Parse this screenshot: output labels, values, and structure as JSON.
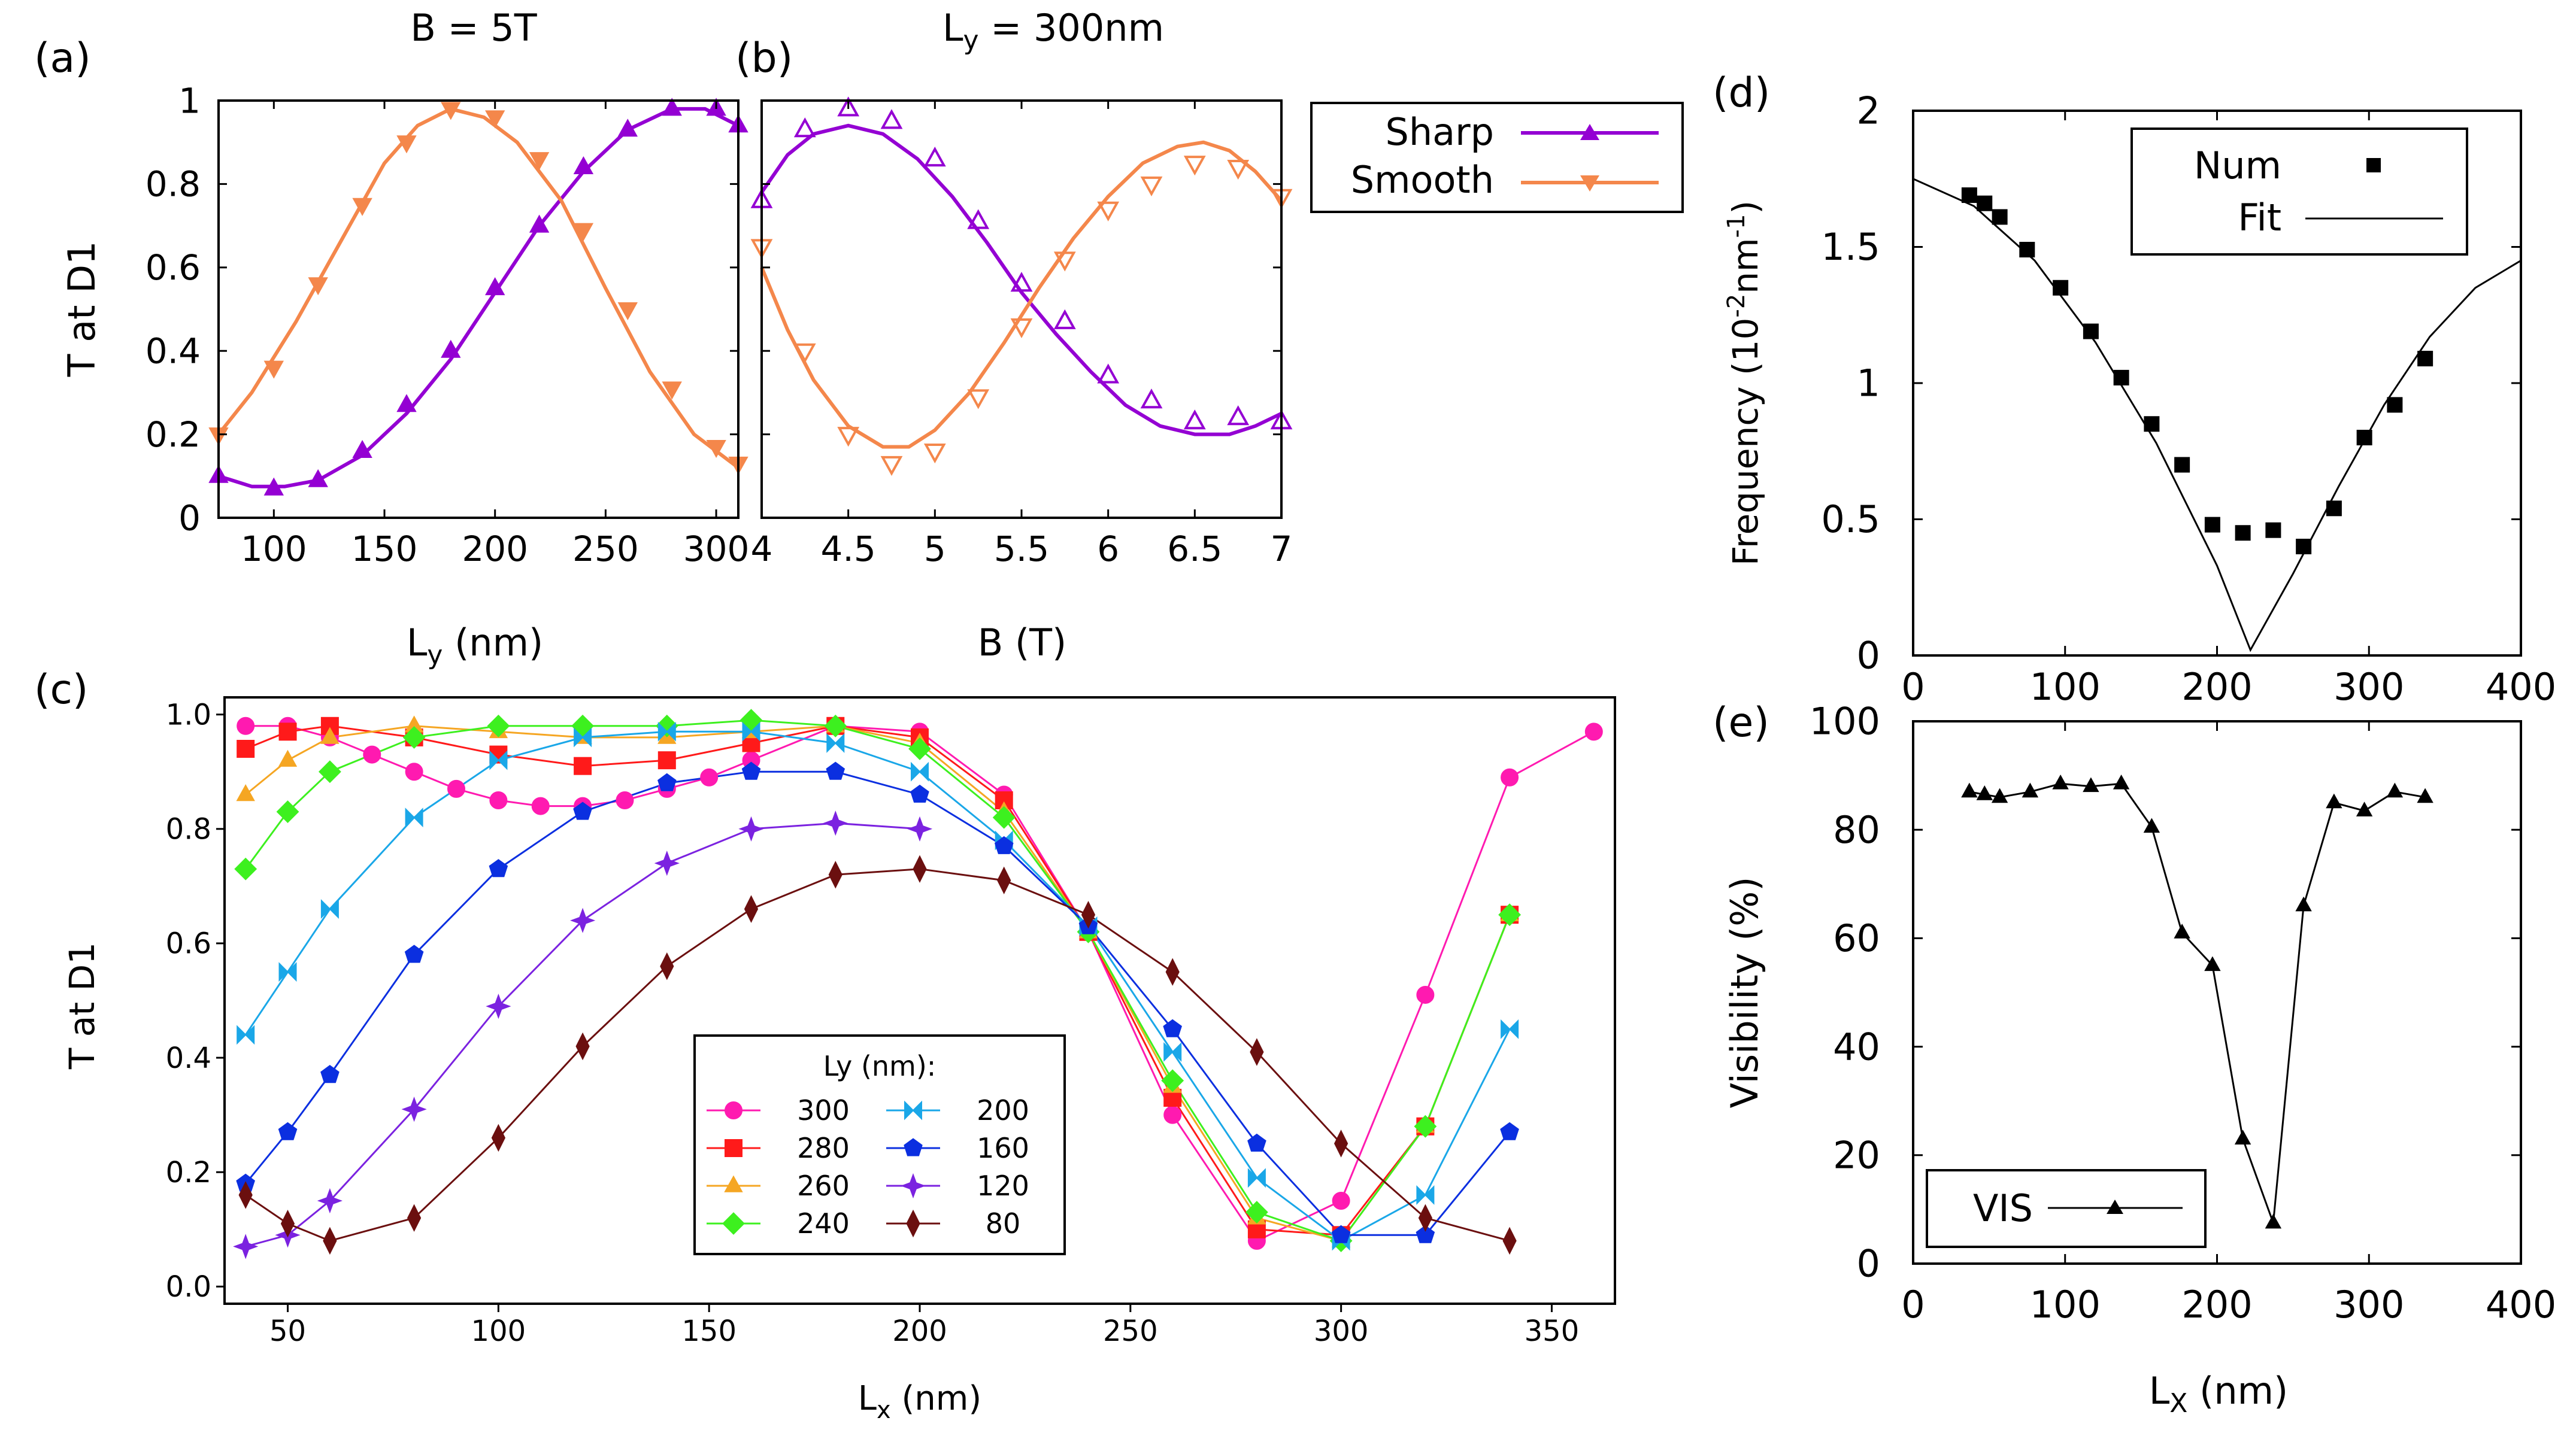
{
  "figure": {
    "panels": {
      "a": {
        "label": "(a)"
      },
      "b": {
        "label": "(b)"
      },
      "c": {
        "label": "(c)"
      },
      "d": {
        "label": "(d)"
      },
      "e": {
        "label": "(e)"
      }
    },
    "shared_legend_ab": {
      "entries": [
        "Sharp",
        "Smooth"
      ]
    },
    "colors": {
      "sharp": "#9400d3",
      "smooth": "#f4874b"
    }
  },
  "chart_data": [
    {
      "id": "a",
      "type": "line",
      "title": "B = 5T",
      "xlabel": "L",
      "xlabel_sub": "y",
      "xlabel_unit": " (nm)",
      "ylabel": "T at D1",
      "xlim": [
        75,
        310
      ],
      "ylim": [
        0,
        1
      ],
      "xticks": [
        100,
        150,
        200,
        250,
        300
      ],
      "ytick_labels": [
        "0",
        "0.2",
        "0.4",
        "0.6",
        "0.8",
        "1"
      ],
      "series": [
        {
          "name": "Sharp",
          "marker": "tri-up",
          "x": [
            75,
            100,
            120,
            140,
            160,
            180,
            200,
            220,
            240,
            260,
            280,
            300,
            310
          ],
          "y": [
            0.1,
            0.07,
            0.09,
            0.16,
            0.27,
            0.4,
            0.55,
            0.7,
            0.84,
            0.93,
            0.98,
            0.98,
            0.94
          ],
          "fit_x": [
            75,
            90,
            105,
            120,
            140,
            160,
            180,
            200,
            220,
            240,
            260,
            280,
            295,
            310
          ],
          "fit_y": [
            0.1,
            0.075,
            0.075,
            0.09,
            0.15,
            0.25,
            0.38,
            0.54,
            0.7,
            0.83,
            0.93,
            0.98,
            0.98,
            0.94
          ]
        },
        {
          "name": "Smooth",
          "marker": "tri-down",
          "x": [
            75,
            100,
            120,
            140,
            160,
            180,
            200,
            220,
            240,
            260,
            280,
            300,
            310
          ],
          "y": [
            0.2,
            0.36,
            0.56,
            0.75,
            0.9,
            0.98,
            0.96,
            0.86,
            0.69,
            0.5,
            0.31,
            0.17,
            0.13
          ],
          "fit_x": [
            75,
            90,
            110,
            130,
            150,
            165,
            180,
            195,
            210,
            230,
            250,
            270,
            290,
            310
          ],
          "fit_y": [
            0.2,
            0.3,
            0.47,
            0.66,
            0.85,
            0.94,
            0.98,
            0.96,
            0.9,
            0.76,
            0.55,
            0.35,
            0.2,
            0.12
          ]
        }
      ]
    },
    {
      "id": "b",
      "type": "line",
      "title": "L",
      "title_sub": "y",
      "title_suffix": " = 300nm",
      "xlabel": "B (T)",
      "xlim": [
        4,
        7
      ],
      "ylim": [
        0,
        1
      ],
      "xticks": [
        4,
        4.5,
        5,
        5.5,
        6,
        6.5,
        7
      ],
      "xtick_labels": [
        "4",
        "4.5",
        "5",
        "5.5",
        "6",
        "6.5",
        "7"
      ],
      "series": [
        {
          "name": "Sharp",
          "marker": "tri-up",
          "x": [
            4,
            4.25,
            4.5,
            4.75,
            5,
            5.25,
            5.5,
            5.75,
            6,
            6.25,
            6.5,
            6.75,
            7
          ],
          "y": [
            0.76,
            0.93,
            0.98,
            0.95,
            0.86,
            0.71,
            0.56,
            0.47,
            0.34,
            0.28,
            0.23,
            0.24,
            0.23
          ],
          "fit_x": [
            4,
            4.15,
            4.3,
            4.5,
            4.7,
            4.9,
            5.1,
            5.3,
            5.5,
            5.7,
            5.9,
            6.1,
            6.3,
            6.5,
            6.7,
            6.85,
            7
          ],
          "fit_y": [
            0.78,
            0.87,
            0.92,
            0.94,
            0.92,
            0.86,
            0.77,
            0.66,
            0.54,
            0.44,
            0.35,
            0.27,
            0.22,
            0.2,
            0.2,
            0.22,
            0.25
          ]
        },
        {
          "name": "Smooth",
          "marker": "tri-down",
          "x": [
            4,
            4.25,
            4.5,
            4.75,
            5,
            5.25,
            5.5,
            5.75,
            6,
            6.25,
            6.5,
            6.75,
            7
          ],
          "y": [
            0.65,
            0.4,
            0.2,
            0.13,
            0.16,
            0.29,
            0.46,
            0.62,
            0.74,
            0.8,
            0.85,
            0.84,
            0.77
          ],
          "fit_x": [
            4,
            4.15,
            4.3,
            4.5,
            4.7,
            4.85,
            5,
            5.2,
            5.4,
            5.6,
            5.8,
            6,
            6.2,
            6.4,
            6.55,
            6.7,
            6.85,
            7
          ],
          "fit_y": [
            0.6,
            0.45,
            0.33,
            0.22,
            0.17,
            0.17,
            0.21,
            0.3,
            0.42,
            0.55,
            0.67,
            0.77,
            0.85,
            0.89,
            0.9,
            0.88,
            0.83,
            0.76
          ]
        }
      ]
    },
    {
      "id": "c",
      "type": "line",
      "ylabel": "T at D1",
      "xlabel": "L",
      "xlabel_sub": "x",
      "xlabel_unit": " (nm)",
      "xlim": [
        35,
        365
      ],
      "ylim": [
        -0.03,
        1.03
      ],
      "xticks": [
        50,
        100,
        150,
        200,
        250,
        300,
        350
      ],
      "yticks": [
        0,
        0.2,
        0.4,
        0.6,
        0.8,
        1.0
      ],
      "ytick_labels": [
        "0.0",
        "0.2",
        "0.4",
        "0.6",
        "0.8",
        "1.0"
      ],
      "legend_title": "Ly (nm):",
      "series": [
        {
          "name": "300",
          "color": "#ff1ab0",
          "marker": "circle",
          "x": [
            40,
            50,
            60,
            70,
            80,
            90,
            100,
            110,
            120,
            130,
            140,
            150,
            160,
            180,
            200,
            220,
            240,
            260,
            280,
            300,
            320,
            340,
            360
          ],
          "y": [
            0.98,
            0.98,
            0.96,
            0.93,
            0.9,
            0.87,
            0.85,
            0.84,
            0.84,
            0.85,
            0.87,
            0.89,
            0.92,
            0.98,
            0.97,
            0.86,
            0.62,
            0.3,
            0.08,
            0.15,
            0.51,
            0.89,
            0.97
          ]
        },
        {
          "name": "280",
          "color": "#ff1a1a",
          "marker": "square",
          "x": [
            40,
            50,
            60,
            80,
            100,
            120,
            140,
            160,
            180,
            200,
            220,
            240,
            260,
            280,
            300,
            320,
            340
          ],
          "y": [
            0.94,
            0.97,
            0.98,
            0.96,
            0.93,
            0.91,
            0.92,
            0.95,
            0.98,
            0.96,
            0.85,
            0.62,
            0.33,
            0.1,
            0.09,
            0.28,
            0.65
          ]
        },
        {
          "name": "260",
          "color": "#f5a623",
          "marker": "tri-up",
          "x": [
            40,
            50,
            60,
            80,
            100,
            120,
            140,
            160,
            180,
            200,
            220,
            240,
            260,
            280,
            300,
            320,
            340
          ],
          "y": [
            0.86,
            0.92,
            0.96,
            0.98,
            0.97,
            0.96,
            0.96,
            0.97,
            0.98,
            0.95,
            0.83,
            0.62,
            0.35,
            0.12,
            0.08,
            0.28,
            0.65
          ]
        },
        {
          "name": "240",
          "color": "#3df01f",
          "marker": "diamond",
          "x": [
            40,
            50,
            60,
            80,
            100,
            120,
            140,
            160,
            180,
            200,
            220,
            240,
            260,
            280,
            300,
            320,
            340
          ],
          "y": [
            0.73,
            0.83,
            0.9,
            0.96,
            0.98,
            0.98,
            0.98,
            0.99,
            0.98,
            0.94,
            0.82,
            0.62,
            0.36,
            0.13,
            0.08,
            0.28,
            0.65
          ]
        },
        {
          "name": "200",
          "color": "#1aa7e8",
          "marker": "bowtie",
          "x": [
            40,
            50,
            60,
            80,
            100,
            120,
            140,
            160,
            180,
            200,
            220,
            240,
            260,
            280,
            300,
            320,
            340
          ],
          "y": [
            0.44,
            0.55,
            0.66,
            0.82,
            0.92,
            0.96,
            0.97,
            0.97,
            0.95,
            0.9,
            0.78,
            0.63,
            0.41,
            0.19,
            0.08,
            0.16,
            0.45
          ]
        },
        {
          "name": "160",
          "color": "#0b2fe0",
          "marker": "pentagon",
          "x": [
            40,
            50,
            60,
            80,
            100,
            120,
            140,
            160,
            180,
            200,
            220,
            240,
            260,
            280,
            300,
            320,
            340
          ],
          "y": [
            0.18,
            0.27,
            0.37,
            0.58,
            0.73,
            0.83,
            0.88,
            0.9,
            0.9,
            0.86,
            0.77,
            0.63,
            0.45,
            0.25,
            0.09,
            0.09,
            0.27
          ]
        },
        {
          "name": "120",
          "color": "#7b22e0",
          "marker": "star4",
          "x": [
            40,
            50,
            60,
            80,
            100,
            120,
            140,
            160,
            180,
            200
          ],
          "y": [
            0.07,
            0.09,
            0.15,
            0.31,
            0.49,
            0.64,
            0.74,
            0.8,
            0.81,
            0.8
          ]
        },
        {
          "name": "80",
          "color": "#6b0f0f",
          "marker": "thin-diamond",
          "x": [
            40,
            50,
            60,
            80,
            100,
            120,
            140,
            160,
            180,
            200,
            220,
            240,
            260,
            280,
            300,
            320,
            340
          ],
          "y": [
            0.16,
            0.11,
            0.08,
            0.12,
            0.26,
            0.42,
            0.56,
            0.66,
            0.72,
            0.73,
            0.71,
            0.65,
            0.55,
            0.41,
            0.25,
            0.12,
            0.08
          ]
        }
      ]
    },
    {
      "id": "d",
      "type": "scatter",
      "ylabel": "Frequency (10",
      "ylabel_sup1": "-2",
      "ylabel_mid": "nm",
      "ylabel_sup2": "-1",
      "ylabel_end": ")",
      "xlim": [
        0,
        400
      ],
      "ylim": [
        0,
        2
      ],
      "yticks": [
        0,
        0.5,
        1,
        1.5,
        2
      ],
      "ytick_labels": [
        "0",
        "0.5",
        "1",
        "1.5",
        "2"
      ],
      "series": [
        {
          "name": "Num",
          "marker": "square",
          "x": [
            37,
            47,
            57,
            75,
            97,
            117,
            137,
            157,
            177,
            197,
            217,
            237,
            257,
            277,
            297,
            317,
            337
          ],
          "y": [
            1.69,
            1.66,
            1.61,
            1.49,
            1.35,
            1.19,
            1.02,
            0.85,
            0.7,
            0.48,
            0.45,
            0.46,
            0.4,
            0.54,
            0.8,
            0.92,
            1.09
          ]
        },
        {
          "name": "Fit",
          "type": "line",
          "x": [
            0,
            40,
            80,
            120,
            160,
            200,
            222,
            250,
            280,
            310,
            340,
            370,
            400
          ],
          "y": [
            1.75,
            1.65,
            1.45,
            1.15,
            0.78,
            0.33,
            0.02,
            0.3,
            0.62,
            0.92,
            1.17,
            1.35,
            1.45
          ]
        }
      ]
    },
    {
      "id": "e",
      "type": "line",
      "ylabel": "Visibility (%)",
      "xlabel": "L",
      "xlabel_sub": "X",
      "xlabel_unit": " (nm)",
      "xlim": [
        0,
        400
      ],
      "ylim": [
        0,
        100
      ],
      "xticks": [
        0,
        100,
        200,
        300,
        400
      ],
      "yticks": [
        0,
        20,
        40,
        60,
        80,
        100
      ],
      "series": [
        {
          "name": "VIS",
          "marker": "tri-up",
          "x": [
            37,
            47,
            57,
            77,
            97,
            117,
            137,
            157,
            177,
            197,
            217,
            237,
            257,
            277,
            297,
            317,
            337
          ],
          "y": [
            87,
            86.5,
            86,
            87,
            88.5,
            88,
            88.5,
            80.5,
            61,
            55,
            23,
            7.5,
            66,
            85,
            83.5,
            87,
            86
          ]
        }
      ]
    }
  ]
}
